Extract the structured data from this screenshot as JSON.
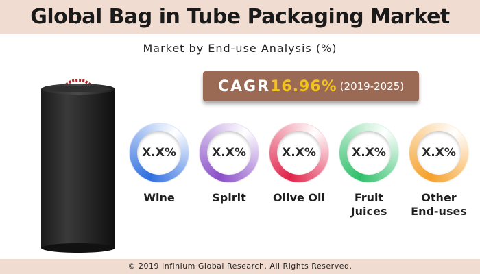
{
  "title": "Global Bag in Tube Packaging Market",
  "subtitle": "Market by End-use Analysis (%)",
  "cagr": {
    "label": "CAGR",
    "value": "16.96%",
    "years": "(2019-2025)"
  },
  "segments": [
    {
      "label": "Wine",
      "value": "X.X%",
      "color": "#2f6fe0"
    },
    {
      "label": "Spirit",
      "value": "X.X%",
      "color": "#8a4fc8"
    },
    {
      "label": "Olive Oil",
      "value": "X.X%",
      "color": "#e0234a"
    },
    {
      "label": "Fruit\nJuices",
      "value": "X.X%",
      "color": "#2fc06a"
    },
    {
      "label": "Other\nEnd-uses",
      "value": "X.X%",
      "color": "#f5a02a"
    }
  ],
  "footer": "© 2019 Infinium Global Research. All Rights Reserved."
}
